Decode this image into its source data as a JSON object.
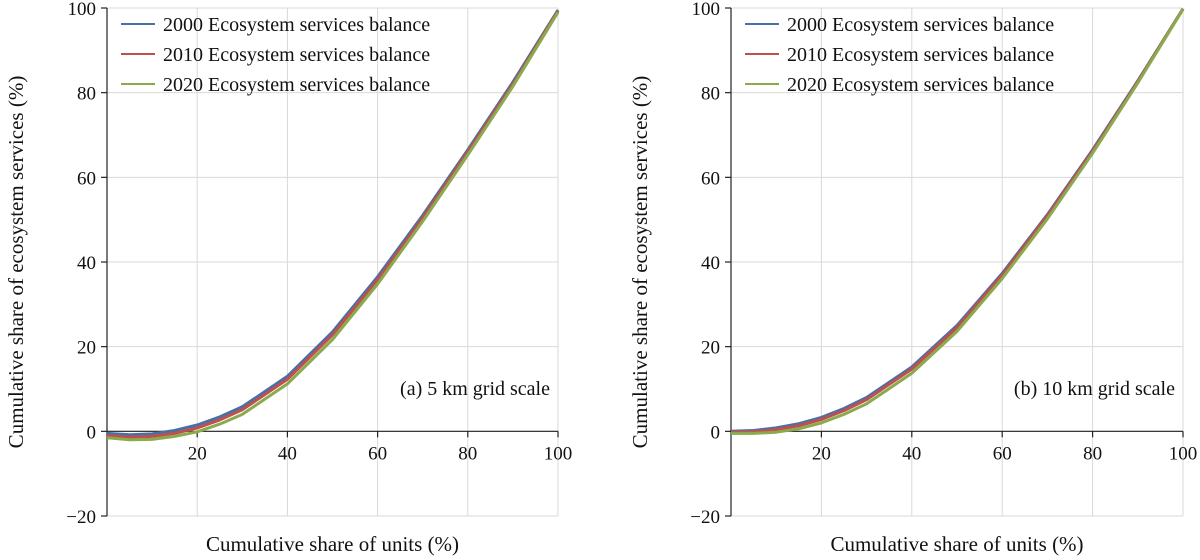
{
  "chart_data": [
    {
      "type": "line",
      "panel_label": "(a)  5 km grid scale",
      "xlabel": "Cumulative share of units (%)",
      "ylabel": "Cumulative share of  ecosystem services (%)",
      "xlim": [
        0,
        100
      ],
      "ylim": [
        -20,
        100
      ],
      "xticks": [
        20,
        40,
        60,
        80,
        100
      ],
      "yticks": [
        -20,
        0,
        20,
        40,
        60,
        80,
        100
      ],
      "grid": true,
      "legend_position": "top-left",
      "series": [
        {
          "name": "2000 Ecosystem services balance",
          "color": "#4a6fa5",
          "x": [
            0,
            5,
            10,
            15,
            20,
            25,
            30,
            40,
            50,
            60,
            70,
            80,
            90,
            100
          ],
          "y": [
            -0.5,
            -0.8,
            -0.6,
            0.2,
            1.5,
            3.4,
            5.8,
            13.0,
            23.5,
            36.5,
            51.0,
            66.5,
            82.5,
            99.5
          ]
        },
        {
          "name": "2010 Ecosystem services balance",
          "color": "#c0504d",
          "x": [
            0,
            5,
            10,
            15,
            20,
            25,
            30,
            40,
            50,
            60,
            70,
            80,
            90,
            100
          ],
          "y": [
            -1.0,
            -1.4,
            -1.2,
            -0.5,
            0.8,
            2.7,
            5.1,
            12.3,
            22.8,
            35.8,
            50.4,
            66.0,
            82.0,
            99.3
          ]
        },
        {
          "name": "2020 Ecosystem services balance",
          "color": "#8aab4c",
          "x": [
            0,
            5,
            10,
            15,
            20,
            25,
            30,
            40,
            50,
            60,
            70,
            80,
            90,
            100
          ],
          "y": [
            -1.5,
            -2.0,
            -1.9,
            -1.2,
            -0.1,
            1.7,
            4.0,
            11.2,
            21.7,
            34.8,
            49.6,
            65.3,
            81.5,
            99.0
          ]
        }
      ]
    },
    {
      "type": "line",
      "panel_label": "(b) 10 km grid scale",
      "xlabel": "Cumulative share of units (%)",
      "ylabel": "Cumulative share of  ecosystem services (%)",
      "xlim": [
        0,
        100
      ],
      "ylim": [
        -20,
        100
      ],
      "xticks": [
        20,
        40,
        60,
        80,
        100
      ],
      "yticks": [
        -20,
        0,
        20,
        40,
        60,
        80,
        100
      ],
      "grid": true,
      "legend_position": "top-left",
      "series": [
        {
          "name": "2000 Ecosystem services balance",
          "color": "#4a6fa5",
          "x": [
            0,
            5,
            10,
            15,
            20,
            25,
            30,
            40,
            50,
            60,
            70,
            80,
            90,
            100
          ],
          "y": [
            0.0,
            0.2,
            0.8,
            1.8,
            3.3,
            5.4,
            8.0,
            15.2,
            25.0,
            37.3,
            51.2,
            66.5,
            82.8,
            99.8
          ]
        },
        {
          "name": "2010 Ecosystem services balance",
          "color": "#c0504d",
          "x": [
            0,
            5,
            10,
            15,
            20,
            25,
            30,
            40,
            50,
            60,
            70,
            80,
            90,
            100
          ],
          "y": [
            -0.2,
            -0.1,
            0.4,
            1.3,
            2.8,
            4.9,
            7.5,
            14.7,
            24.5,
            36.9,
            50.9,
            66.2,
            82.6,
            99.8
          ]
        },
        {
          "name": "2020 Ecosystem services balance",
          "color": "#8aab4c",
          "x": [
            0,
            5,
            10,
            15,
            20,
            25,
            30,
            40,
            50,
            60,
            70,
            80,
            90,
            100
          ],
          "y": [
            -0.5,
            -0.5,
            -0.2,
            0.6,
            2.0,
            4.0,
            6.5,
            13.7,
            23.6,
            36.1,
            50.2,
            65.7,
            82.3,
            99.7
          ]
        }
      ]
    }
  ]
}
